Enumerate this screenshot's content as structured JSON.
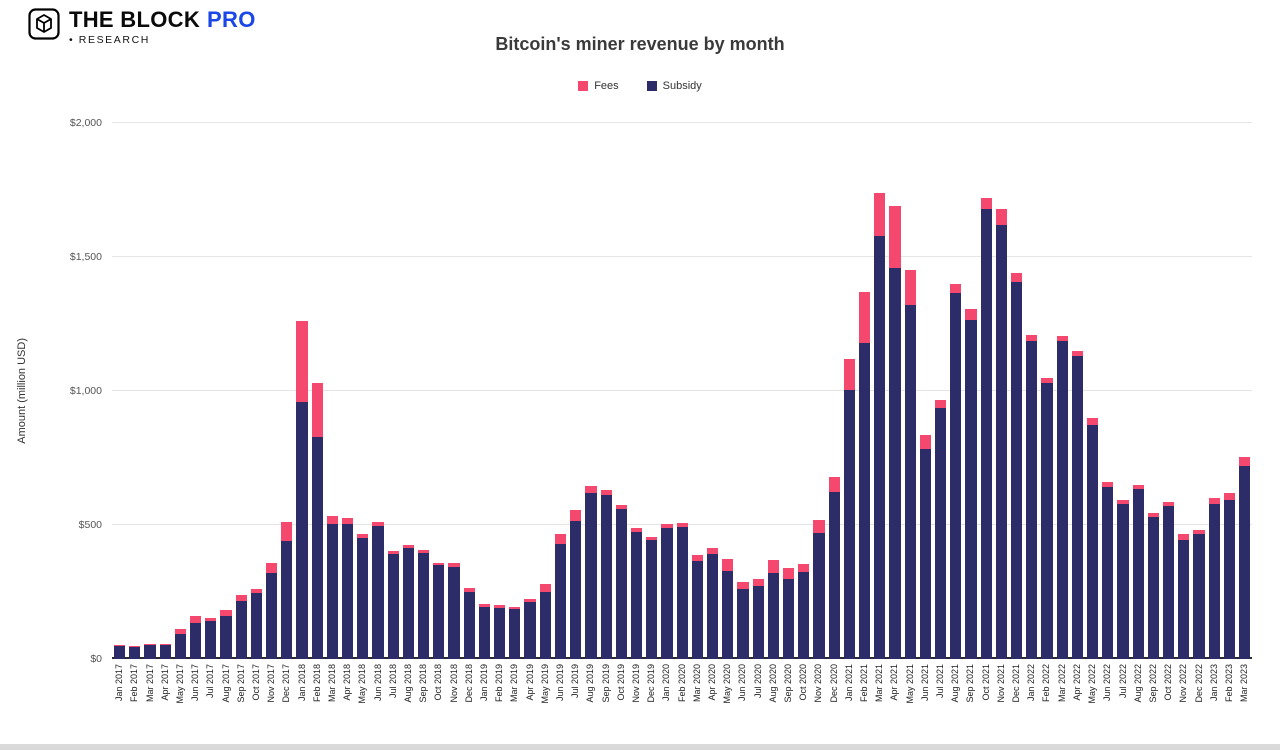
{
  "brand": {
    "name": "THE BLOCK",
    "suffix": "PRO",
    "research": "• RESEARCH",
    "icons": {
      "logo": "cube-icon"
    }
  },
  "chart_data": {
    "type": "bar",
    "stacked": true,
    "title": "Bitcoin's miner revenue by month",
    "xlabel": "",
    "ylabel": "Amount (million USD)",
    "ylim": [
      0,
      2000
    ],
    "yticks": [
      "$0",
      "$500",
      "$1,000",
      "$1,500",
      "$2,000"
    ],
    "grid": "horizontal",
    "legend_position": "top-center",
    "categories": [
      "Jan 2017",
      "Feb 2017",
      "Mar 2017",
      "Apr 2017",
      "May 2017",
      "Jun 2017",
      "Jul 2017",
      "Aug 2017",
      "Sep 2017",
      "Oct 2017",
      "Nov 2017",
      "Dec 2017",
      "Jan 2018",
      "Feb 2018",
      "Mar 2018",
      "Apr 2018",
      "May 2018",
      "Jun 2018",
      "Jul 2018",
      "Aug 2018",
      "Sep 2018",
      "Oct 2018",
      "Nov 2018",
      "Dec 2018",
      "Jan 2019",
      "Feb 2019",
      "Mar 2019",
      "Apr 2019",
      "May 2019",
      "Jun 2019",
      "Jul 2019",
      "Aug 2019",
      "Sep 2019",
      "Oct 2019",
      "Nov 2019",
      "Dec 2019",
      "Jan 2020",
      "Feb 2020",
      "Mar 2020",
      "Apr 2020",
      "May 2020",
      "Jun 2020",
      "Jul 2020",
      "Aug 2020",
      "Sep 2020",
      "Oct 2020",
      "Nov 2020",
      "Dec 2020",
      "Jan 2021",
      "Feb 2021",
      "Mar 2021",
      "Apr 2021",
      "May 2021",
      "Jun 2021",
      "Jul 2021",
      "Aug 2021",
      "Sep 2021",
      "Oct 2021",
      "Nov 2021",
      "Dec 2021",
      "Jan 2022",
      "Feb 2022",
      "Mar 2022",
      "Apr 2022",
      "May 2022",
      "Jun 2022",
      "Jul 2022",
      "Aug 2022",
      "Sep 2022",
      "Oct 2022",
      "Nov 2022",
      "Dec 2022",
      "Jan 2023",
      "Feb 2023",
      "Mar 2023"
    ],
    "series": [
      {
        "name": "Fees",
        "color": "#f5486f",
        "values": [
          3,
          3,
          4,
          5,
          18,
          25,
          13,
          22,
          25,
          18,
          38,
          70,
          300,
          200,
          30,
          20,
          18,
          15,
          12,
          12,
          12,
          10,
          12,
          15,
          10,
          10,
          8,
          13,
          30,
          35,
          40,
          27,
          18,
          15,
          15,
          12,
          15,
          16,
          22,
          25,
          45,
          25,
          28,
          48,
          42,
          30,
          48,
          58,
          115,
          190,
          160,
          230,
          130,
          50,
          30,
          35,
          40,
          40,
          60,
          35,
          25,
          20,
          20,
          20,
          28,
          20,
          15,
          15,
          15,
          15,
          20,
          15,
          20,
          25,
          35
        ]
      },
      {
        "name": "Subsidy",
        "color": "#2b2c68",
        "values": [
          48,
          46,
          52,
          52,
          95,
          135,
          140,
          160,
          215,
          245,
          320,
          440,
          960,
          830,
          505,
          505,
          450,
          495,
          390,
          415,
          395,
          350,
          345,
          250,
          195,
          190,
          185,
          212,
          250,
          430,
          515,
          618,
          612,
          560,
          475,
          443,
          490,
          492,
          365,
          390,
          330,
          262,
          272,
          322,
          298,
          325,
          472,
          622,
          1005,
          1180,
          1580,
          1460,
          1320,
          785,
          935,
          1365,
          1265,
          1680,
          1620,
          1405,
          1185,
          1030,
          1185,
          1130,
          872,
          640,
          580,
          635,
          530,
          570,
          445,
          465,
          580,
          595,
          720
        ]
      }
    ]
  }
}
